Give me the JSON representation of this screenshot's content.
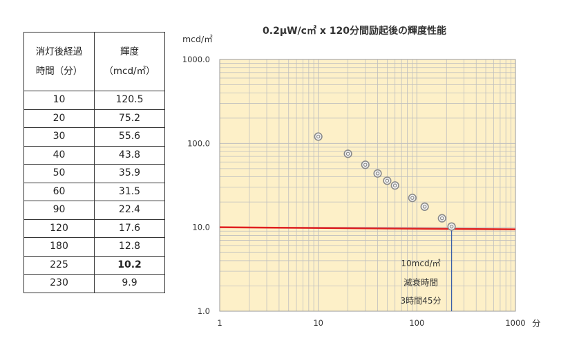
{
  "table": {
    "header": [
      "消灯後経過時間（分）",
      "輝度（mcd/㎡）"
    ],
    "header_lines": [
      [
        "消灯後経過",
        "時間（分）"
      ],
      [
        "輝度",
        "（mcd/㎡）"
      ]
    ],
    "rows": [
      {
        "time": "10",
        "lum": "120.5"
      },
      {
        "time": "20",
        "lum": "75.2"
      },
      {
        "time": "30",
        "lum": "55.6"
      },
      {
        "time": "40",
        "lum": "43.8"
      },
      {
        "time": "50",
        "lum": "35.9"
      },
      {
        "time": "60",
        "lum": "31.5"
      },
      {
        "time": "90",
        "lum": "22.4"
      },
      {
        "time": "120",
        "lum": "17.6"
      },
      {
        "time": "180",
        "lum": "12.8"
      },
      {
        "time": "225",
        "lum": "10.2"
      },
      {
        "time": "230",
        "lum": "9.9"
      }
    ],
    "bold_row_index": 9
  },
  "chart_data": {
    "type": "scatter",
    "title": "0.2μW/c㎡ x 120分間励起後の輝度性能",
    "ylabel": "mcd/㎡",
    "xlabel": "分",
    "xscale": "log",
    "yscale": "log",
    "xlim": [
      1,
      1000
    ],
    "ylim": [
      1,
      1000
    ],
    "x_tick_labels": [
      "1",
      "10",
      "100",
      "1000"
    ],
    "y_tick_labels": [
      "1.0",
      "10.0",
      "100.0",
      "1000.0"
    ],
    "grid": true,
    "legend": "none",
    "series": [
      {
        "x": [
          10,
          20,
          30,
          40,
          50,
          60,
          90,
          120,
          180,
          225
        ],
        "y": [
          120.5,
          75.2,
          55.6,
          43.8,
          35.9,
          31.5,
          22.4,
          17.6,
          12.8,
          10.2
        ]
      }
    ],
    "reference_line": {
      "y": 10,
      "color": "#e02020"
    },
    "marker_line": {
      "x": 225
    },
    "annotation": [
      "10mcd/㎡",
      "減衰時間",
      "3時間45分"
    ]
  },
  "colors": {
    "plot_background": "#fdf0c8",
    "grid": "#bfbfbf",
    "reference_line": "#e02020",
    "marker_line": "#3a5fa8",
    "marker": "#8a8a8a"
  }
}
